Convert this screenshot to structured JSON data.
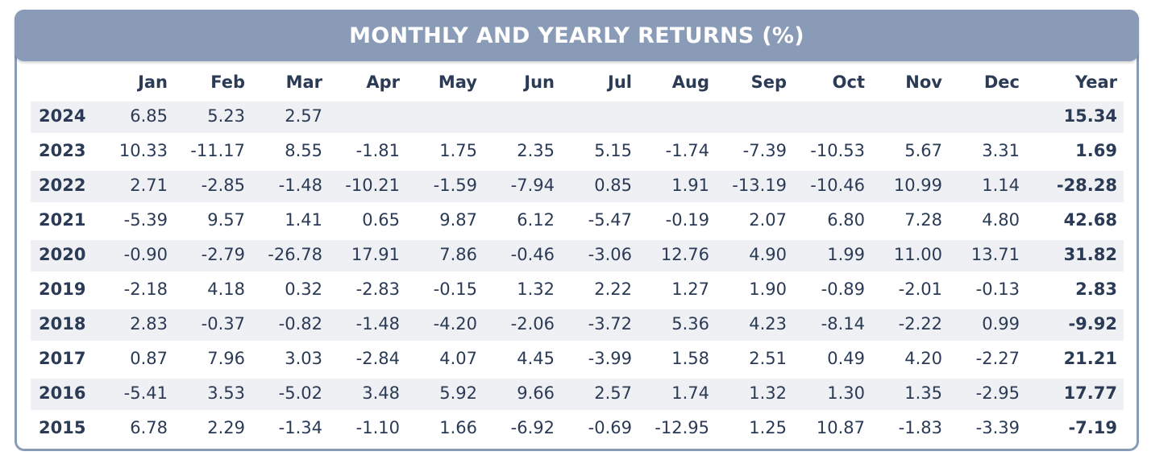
{
  "title": "MONTHLY AND YEARLY RETURNS (%)",
  "colors": {
    "accent": "#8a9bb8",
    "text": "#2b3a55",
    "row_shade": "#eef0f4"
  },
  "chart_data": {
    "type": "table",
    "title": "MONTHLY AND YEARLY RETURNS (%)",
    "columns": [
      "",
      "Jan",
      "Feb",
      "Mar",
      "Apr",
      "May",
      "Jun",
      "Jul",
      "Aug",
      "Sep",
      "Oct",
      "Nov",
      "Dec",
      "Year"
    ],
    "rows": [
      {
        "year": "2024",
        "months": [
          "6.85",
          "5.23",
          "2.57",
          "",
          "",
          "",
          "",
          "",
          "",
          "",
          "",
          ""
        ],
        "total": "15.34"
      },
      {
        "year": "2023",
        "months": [
          "10.33",
          "-11.17",
          "8.55",
          "-1.81",
          "1.75",
          "2.35",
          "5.15",
          "-1.74",
          "-7.39",
          "-10.53",
          "5.67",
          "3.31"
        ],
        "total": "1.69"
      },
      {
        "year": "2022",
        "months": [
          "2.71",
          "-2.85",
          "-1.48",
          "-10.21",
          "-1.59",
          "-7.94",
          "0.85",
          "1.91",
          "-13.19",
          "-10.46",
          "10.99",
          "1.14"
        ],
        "total": "-28.28"
      },
      {
        "year": "2021",
        "months": [
          "-5.39",
          "9.57",
          "1.41",
          "0.65",
          "9.87",
          "6.12",
          "-5.47",
          "-0.19",
          "2.07",
          "6.80",
          "7.28",
          "4.80"
        ],
        "total": "42.68"
      },
      {
        "year": "2020",
        "months": [
          "-0.90",
          "-2.79",
          "-26.78",
          "17.91",
          "7.86",
          "-0.46",
          "-3.06",
          "12.76",
          "4.90",
          "1.99",
          "11.00",
          "13.71"
        ],
        "total": "31.82"
      },
      {
        "year": "2019",
        "months": [
          "-2.18",
          "4.18",
          "0.32",
          "-2.83",
          "-0.15",
          "1.32",
          "2.22",
          "1.27",
          "1.90",
          "-0.89",
          "-2.01",
          "-0.13"
        ],
        "total": "2.83"
      },
      {
        "year": "2018",
        "months": [
          "2.83",
          "-0.37",
          "-0.82",
          "-1.48",
          "-4.20",
          "-2.06",
          "-3.72",
          "5.36",
          "4.23",
          "-8.14",
          "-2.22",
          "0.99"
        ],
        "total": "-9.92"
      },
      {
        "year": "2017",
        "months": [
          "0.87",
          "7.96",
          "3.03",
          "-2.84",
          "4.07",
          "4.45",
          "-3.99",
          "1.58",
          "2.51",
          "0.49",
          "4.20",
          "-2.27"
        ],
        "total": "21.21"
      },
      {
        "year": "2016",
        "months": [
          "-5.41",
          "3.53",
          "-5.02",
          "3.48",
          "5.92",
          "9.66",
          "2.57",
          "1.74",
          "1.32",
          "1.30",
          "1.35",
          "-2.95"
        ],
        "total": "17.77"
      },
      {
        "year": "2015",
        "months": [
          "6.78",
          "2.29",
          "-1.34",
          "-1.10",
          "1.66",
          "-6.92",
          "-0.69",
          "-12.95",
          "1.25",
          "10.87",
          "-1.83",
          "-3.39"
        ],
        "total": "-7.19"
      }
    ]
  }
}
